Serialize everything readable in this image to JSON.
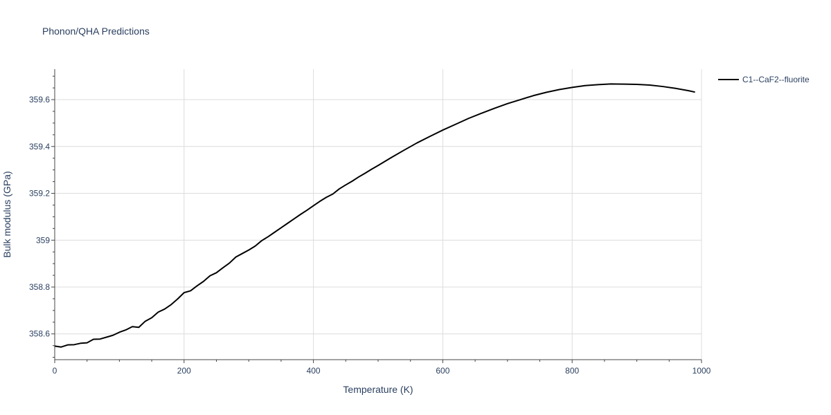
{
  "chart_data": {
    "type": "line",
    "title": "Phonon/QHA Predictions",
    "xlabel": "Temperature (K)",
    "ylabel": "Bulk modulus (GPa)",
    "xlim": [
      0,
      1000
    ],
    "ylim": [
      358.49,
      359.73
    ],
    "grid": true,
    "legend_position": "top-right",
    "x_ticks": [
      0,
      200,
      400,
      600,
      800,
      1000
    ],
    "x_tick_labels": [
      "0",
      "200",
      "400",
      "600",
      "800",
      "1000"
    ],
    "y_ticks": [
      358.6,
      358.8,
      359.0,
      359.2,
      359.4,
      359.6
    ],
    "y_tick_labels": [
      "358.6",
      "358.8",
      "359",
      "359.2",
      "359.4",
      "359.6"
    ],
    "series": [
      {
        "name": "C1--CaF2--fluorite",
        "color": "#000000",
        "x": [
          0,
          10,
          20,
          30,
          40,
          50,
          60,
          70,
          80,
          90,
          100,
          110,
          120,
          130,
          140,
          150,
          160,
          170,
          180,
          190,
          200,
          210,
          220,
          230,
          240,
          250,
          260,
          270,
          280,
          290,
          300,
          310,
          320,
          330,
          340,
          350,
          360,
          370,
          380,
          390,
          400,
          410,
          420,
          430,
          440,
          450,
          460,
          470,
          480,
          490,
          500,
          520,
          540,
          560,
          580,
          600,
          620,
          640,
          660,
          680,
          700,
          720,
          740,
          760,
          780,
          800,
          820,
          840,
          860,
          880,
          900,
          920,
          940,
          960,
          980,
          990
        ],
        "y": [
          358.548,
          358.544,
          358.553,
          358.554,
          358.56,
          358.562,
          358.577,
          358.578,
          358.586,
          358.594,
          358.607,
          358.617,
          358.631,
          358.628,
          358.654,
          358.669,
          358.693,
          358.706,
          358.725,
          358.749,
          358.776,
          358.784,
          358.805,
          358.824,
          358.848,
          358.861,
          358.882,
          358.902,
          358.928,
          358.943,
          358.958,
          358.975,
          358.998,
          359.015,
          359.034,
          359.053,
          359.072,
          359.091,
          359.11,
          359.128,
          359.147,
          359.166,
          359.183,
          359.197,
          359.219,
          359.236,
          359.252,
          359.27,
          359.286,
          359.303,
          359.319,
          359.352,
          359.384,
          359.415,
          359.443,
          359.47,
          359.495,
          359.52,
          359.542,
          359.563,
          359.583,
          359.6,
          359.617,
          359.631,
          359.643,
          359.652,
          359.66,
          359.664,
          359.667,
          359.666,
          359.665,
          359.662,
          359.656,
          359.648,
          359.638,
          359.632
        ]
      }
    ]
  }
}
